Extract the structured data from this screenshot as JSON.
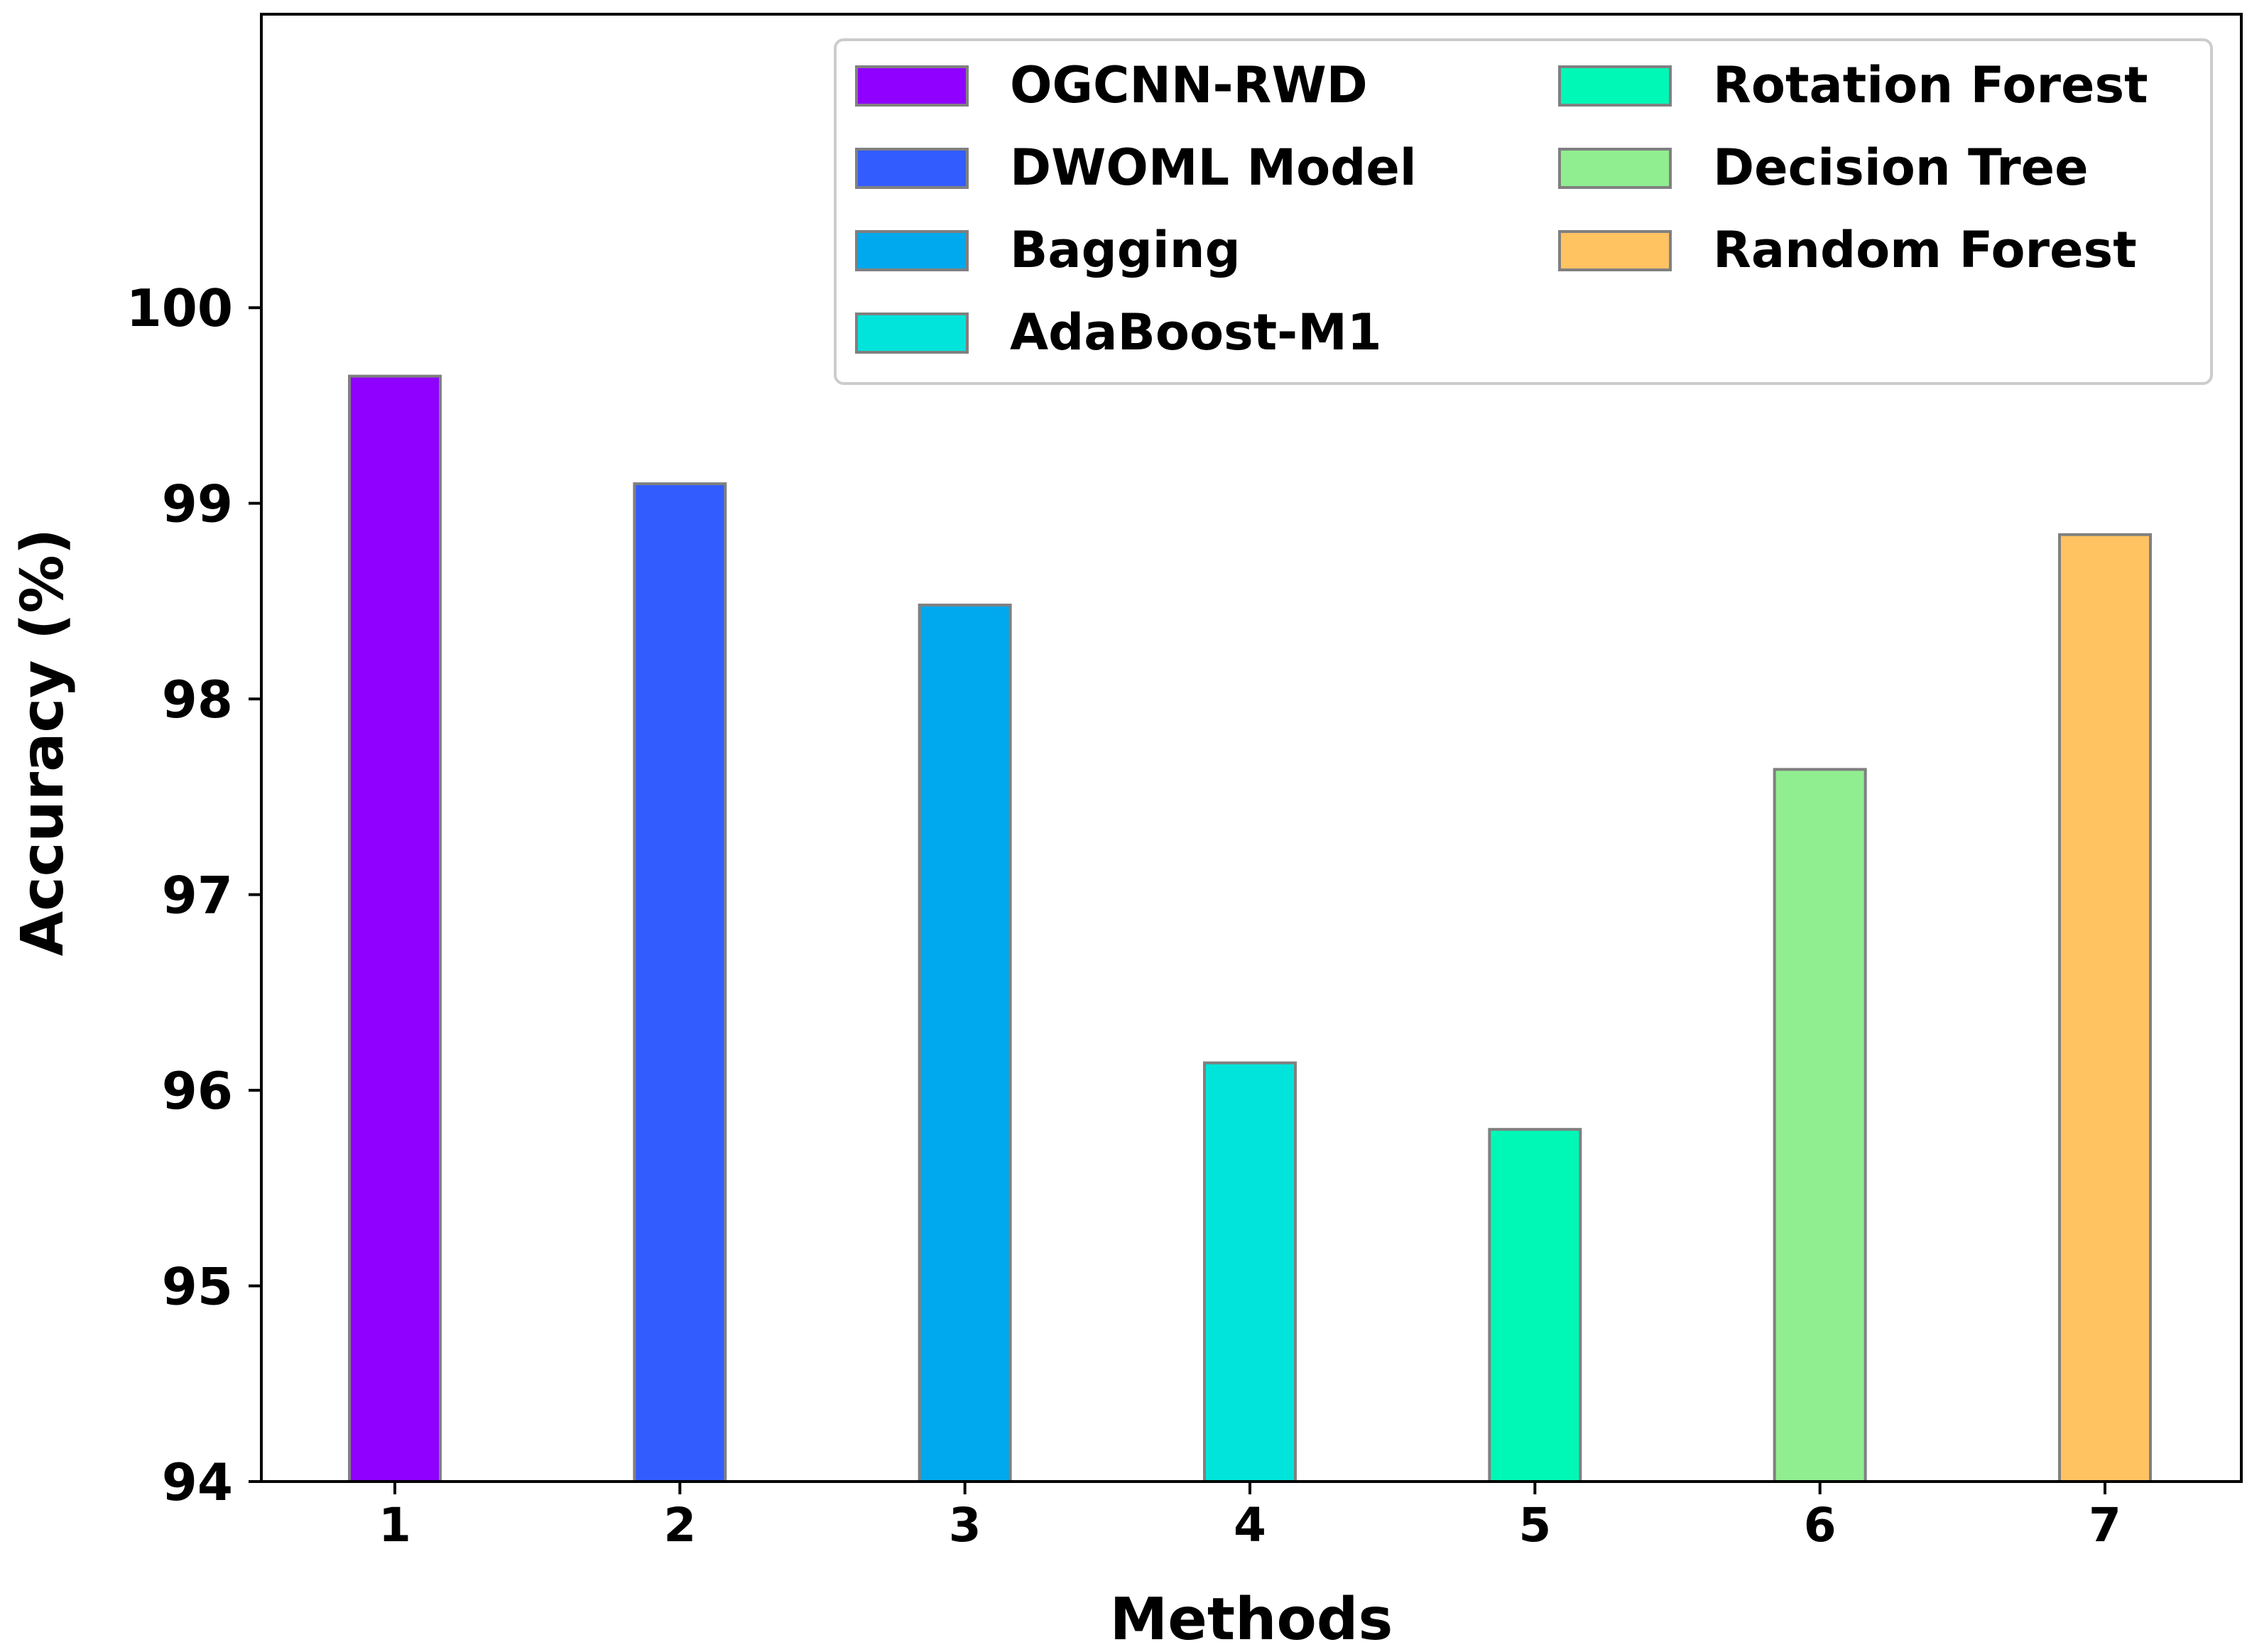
{
  "chart_data": {
    "type": "bar",
    "title": "",
    "xlabel": "Methods",
    "ylabel": "Accuracy (%)",
    "ylim": [
      94,
      101.5
    ],
    "yticks": [
      94,
      95,
      96,
      97,
      98,
      99,
      100
    ],
    "categories": [
      "1",
      "2",
      "3",
      "4",
      "5",
      "6",
      "7"
    ],
    "series": [
      {
        "name": "OGCNN-RWD",
        "category": "1",
        "value": 99.65,
        "color": "#8f00ff"
      },
      {
        "name": "DWOML Model",
        "category": "2",
        "value": 99.1,
        "color": "#335cff"
      },
      {
        "name": "Bagging",
        "category": "3",
        "value": 98.48,
        "color": "#00a8ed"
      },
      {
        "name": "AdaBoost-M1",
        "category": "4",
        "value": 96.14,
        "color": "#00e4dc"
      },
      {
        "name": "Rotation Forest",
        "category": "5",
        "value": 95.8,
        "color": "#00f8b6"
      },
      {
        "name": "Decision Tree",
        "category": "6",
        "value": 97.64,
        "color": "#90ee90"
      },
      {
        "name": "Random Forest",
        "category": "7",
        "value": 98.84,
        "color": "#ffc362"
      }
    ],
    "legend": {
      "position": "top-right",
      "columns": 2
    },
    "grid": false,
    "bar_edge_color": "#808080"
  }
}
